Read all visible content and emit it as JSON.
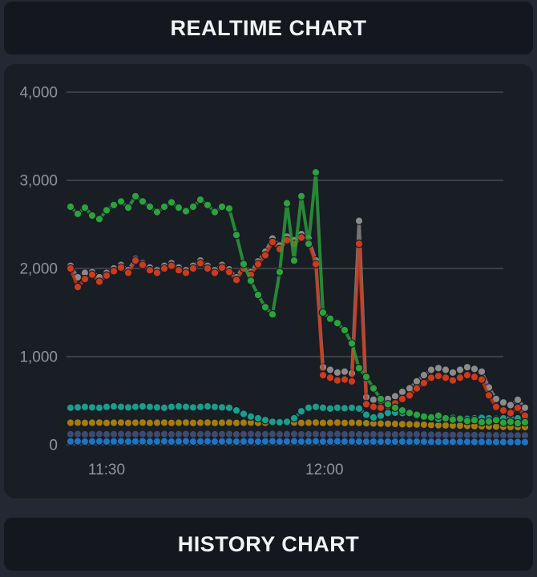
{
  "header": {
    "title": "REALTIME CHART"
  },
  "footer": {
    "title": "HISTORY CHART"
  },
  "chart_data": {
    "type": "line",
    "title": "REALTIME CHART",
    "xlabel": "",
    "ylabel": "",
    "ylim": [
      0,
      4400
    ],
    "grid": true,
    "legend": false,
    "point_interval_minutes": 1,
    "x_ticks": [
      {
        "label": "11:30",
        "index": 5
      },
      {
        "label": "12:00",
        "index": 35.2
      }
    ],
    "y_ticks": [
      {
        "label": "0",
        "value": 0
      },
      {
        "label": "1,000",
        "value": 1000
      },
      {
        "label": "2,000",
        "value": 2000
      },
      {
        "label": "3,000",
        "value": 3000
      },
      {
        "label": "4,000",
        "value": 4000
      }
    ],
    "axis_text_color": "#8f949c",
    "gridline_color": "#50545b",
    "series": [
      {
        "name": "slate",
        "color": "#3d4b6e",
        "values": [
          120,
          122,
          118,
          120,
          122,
          118,
          120,
          122,
          118,
          120,
          122,
          118,
          120,
          122,
          118,
          120,
          122,
          118,
          120,
          122,
          118,
          120,
          122,
          118,
          120,
          122,
          118,
          120,
          122,
          118,
          120,
          122,
          118,
          120,
          122,
          118,
          120,
          122,
          118,
          120,
          118,
          116,
          118,
          116,
          118,
          116,
          118,
          116,
          118,
          116,
          114,
          114,
          112,
          112,
          112,
          110,
          110,
          110,
          108,
          108,
          108,
          106,
          106,
          105
        ]
      },
      {
        "name": "blue",
        "color": "#1d73c4",
        "values": [
          38,
          40,
          36,
          38,
          40,
          36,
          38,
          40,
          36,
          38,
          40,
          36,
          38,
          40,
          36,
          38,
          40,
          36,
          38,
          40,
          36,
          38,
          40,
          36,
          38,
          40,
          36,
          38,
          40,
          36,
          38,
          40,
          36,
          38,
          40,
          36,
          38,
          40,
          36,
          38,
          36,
          35,
          36,
          35,
          36,
          35,
          36,
          35,
          36,
          35,
          34,
          34,
          34,
          33,
          33,
          33,
          32,
          32,
          32,
          31,
          31,
          31,
          30,
          30
        ]
      },
      {
        "name": "olive",
        "color": "#a67d0d",
        "values": [
          250,
          252,
          248,
          250,
          252,
          248,
          250,
          252,
          248,
          250,
          252,
          248,
          250,
          252,
          248,
          250,
          252,
          248,
          250,
          252,
          248,
          250,
          252,
          248,
          250,
          252,
          248,
          250,
          252,
          248,
          250,
          252,
          248,
          250,
          252,
          248,
          250,
          252,
          248,
          250,
          248,
          245,
          242,
          240,
          238,
          236,
          234,
          232,
          230,
          228,
          225,
          222,
          220,
          218,
          216,
          214,
          212,
          210,
          208,
          206,
          204,
          202,
          200,
          200
        ]
      },
      {
        "name": "teal",
        "color": "#1a9d8d",
        "values": [
          420,
          425,
          430,
          425,
          420,
          430,
          435,
          430,
          425,
          430,
          435,
          430,
          425,
          420,
          430,
          435,
          430,
          425,
          430,
          435,
          430,
          425,
          420,
          390,
          350,
          320,
          300,
          280,
          260,
          255,
          260,
          300,
          380,
          420,
          430,
          420,
          410,
          420,
          415,
          420,
          410,
          340,
          310,
          330,
          360,
          365,
          360,
          350,
          330,
          310,
          300,
          295,
          300,
          305,
          300,
          295,
          300,
          305,
          300,
          295,
          300,
          305,
          300,
          295
        ]
      },
      {
        "name": "gray",
        "color": "#8b8b8b",
        "values": [
          2030,
          1900,
          1950,
          1960,
          1900,
          1950,
          2000,
          2040,
          1980,
          2110,
          2060,
          2010,
          1980,
          2030,
          2060,
          2010,
          1980,
          2030,
          2090,
          2030,
          1980,
          2040,
          1990,
          1900,
          2030,
          1960,
          2080,
          2190,
          2340,
          2260,
          2360,
          2320,
          2390,
          2340,
          2090,
          880,
          850,
          820,
          830,
          810,
          2540,
          540,
          510,
          500,
          520,
          550,
          600,
          640,
          720,
          790,
          850,
          870,
          850,
          820,
          850,
          880,
          860,
          830,
          650,
          520,
          480,
          450,
          510,
          420
        ]
      },
      {
        "name": "red",
        "color": "#cd3a1c",
        "values": [
          2000,
          1790,
          1880,
          1930,
          1850,
          1920,
          1970,
          2010,
          1950,
          2090,
          2040,
          1980,
          1950,
          2000,
          2030,
          1980,
          1950,
          2000,
          2060,
          2000,
          1950,
          2010,
          1960,
          1870,
          2000,
          1930,
          2050,
          2150,
          2300,
          2220,
          2320,
          2280,
          2350,
          2300,
          2050,
          790,
          760,
          730,
          740,
          720,
          2280,
          460,
          430,
          420,
          440,
          470,
          520,
          560,
          640,
          700,
          760,
          780,
          760,
          730,
          760,
          790,
          770,
          740,
          560,
          430,
          390,
          360,
          420,
          330
        ]
      },
      {
        "name": "green",
        "color": "#2aa33c",
        "values": [
          2700,
          2620,
          2690,
          2600,
          2560,
          2660,
          2720,
          2760,
          2690,
          2820,
          2760,
          2700,
          2640,
          2700,
          2750,
          2690,
          2650,
          2700,
          2780,
          2720,
          2640,
          2700,
          2680,
          2380,
          2050,
          1860,
          1700,
          1560,
          1480,
          1960,
          2740,
          2090,
          2820,
          2280,
          3090,
          1500,
          1430,
          1380,
          1300,
          1150,
          870,
          770,
          640,
          520,
          460,
          420,
          390,
          360,
          340,
          320,
          310,
          330,
          300,
          285,
          295,
          270,
          280,
          255,
          265,
          280,
          250,
          260,
          245,
          255
        ]
      }
    ]
  }
}
